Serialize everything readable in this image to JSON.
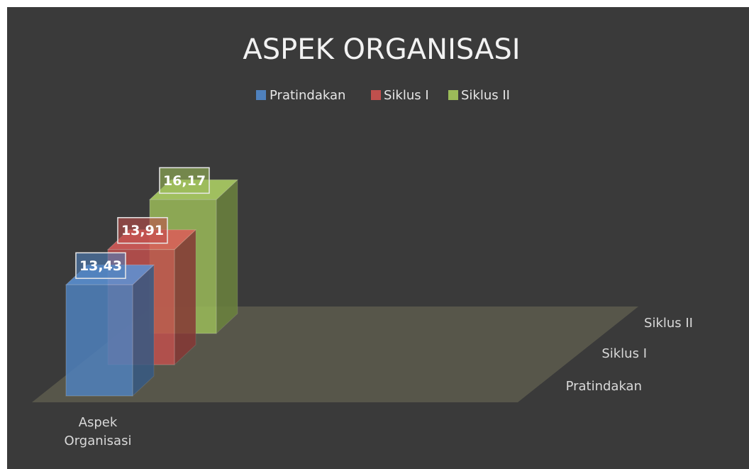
{
  "chart_data": {
    "type": "bar3d",
    "title": "ASPEK ORGANISASI",
    "categories": [
      "Aspek Organisasi"
    ],
    "series": [
      {
        "name": "Pratindakan",
        "color": "#4f81bd",
        "values": [
          13.43
        ],
        "value_labels": [
          "13,43"
        ]
      },
      {
        "name": "Siklus I",
        "color": "#c0504d",
        "values": [
          13.91
        ],
        "value_labels": [
          "13,91"
        ]
      },
      {
        "name": "Siklus II",
        "color": "#9bbb59",
        "values": [
          16.17
        ],
        "value_labels": [
          "16,17"
        ]
      }
    ],
    "ylim": [
      0,
      18
    ],
    "legend": "top"
  }
}
